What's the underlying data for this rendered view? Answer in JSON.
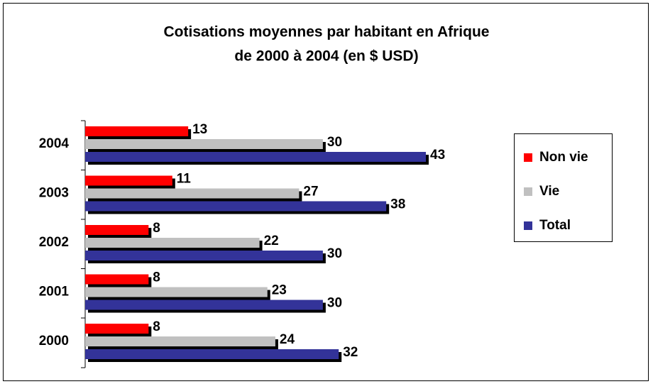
{
  "chart_data": {
    "type": "hbar",
    "title": "Cotisations moyennes par habitant en Afrique",
    "subtitle": "de 2000 à 2004 (en $ USD)",
    "categories": [
      "2000",
      "2001",
      "2002",
      "2003",
      "2004"
    ],
    "series": [
      {
        "name": "Non vie",
        "color": "#ff0000",
        "values": [
          8,
          8,
          8,
          11,
          13
        ]
      },
      {
        "name": "Vie",
        "color": "#c0c0c0",
        "values": [
          24,
          23,
          22,
          27,
          30
        ]
      },
      {
        "name": "Total",
        "color": "#333399",
        "values": [
          32,
          30,
          30,
          38,
          43
        ]
      }
    ],
    "legend": "right"
  }
}
